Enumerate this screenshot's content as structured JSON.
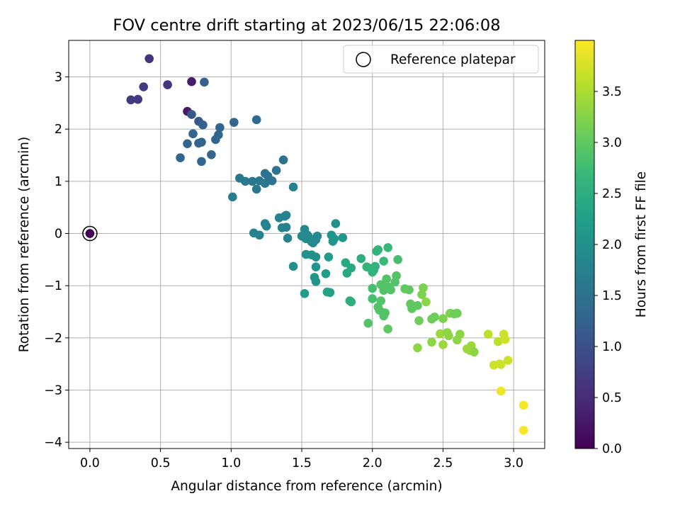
{
  "chart_data": {
    "type": "scatter",
    "title": "FOV centre drift starting at 2023/06/15 22:06:08",
    "xlabel": "Angular distance from reference (arcmin)",
    "ylabel": "Rotation from reference (arcmin)",
    "xlim": [
      -0.15,
      3.22
    ],
    "ylim": [
      -4.12,
      3.7
    ],
    "xticks": [
      "0.0",
      "0.5",
      "1.0",
      "1.5",
      "2.0",
      "2.5",
      "3.0"
    ],
    "xtick_values": [
      0,
      0.5,
      1,
      1.5,
      2,
      2.5,
      3
    ],
    "yticks": [
      "3",
      "2",
      "1",
      "0",
      "−1",
      "−2",
      "−3",
      "−4"
    ],
    "ytick_values": [
      3,
      2,
      1,
      0,
      -1,
      -2,
      -3,
      -4
    ],
    "grid": true,
    "legend": {
      "position": "top-right",
      "label": "Reference platepar"
    },
    "colorbar": {
      "label": "Hours from first FF file",
      "colormap": "viridis",
      "range": [
        0,
        4.0
      ],
      "ticks": [
        "0.0",
        "0.5",
        "1.0",
        "1.5",
        "2.0",
        "2.5",
        "3.0",
        "3.5"
      ],
      "tick_values": [
        0,
        0.5,
        1,
        1.5,
        2,
        2.5,
        3,
        3.5
      ],
      "colors": [
        "#440154",
        "#482878",
        "#3e4989",
        "#31688e",
        "#26828e",
        "#1f9e89",
        "#35b779",
        "#6ece58",
        "#b5de2b",
        "#fde725"
      ]
    },
    "reference": {
      "x": 0.0,
      "y": 0.0,
      "t": 0.0
    },
    "points": [
      [
        0.42,
        3.35,
        0.6
      ],
      [
        0.29,
        2.56,
        0.7
      ],
      [
        0.34,
        2.57,
        0.7
      ],
      [
        0.38,
        2.81,
        0.7
      ],
      [
        0.55,
        2.85,
        0.6
      ],
      [
        0.72,
        2.91,
        0.3
      ],
      [
        0.81,
        2.9,
        1.2
      ],
      [
        0.69,
        2.34,
        0.3
      ],
      [
        0.72,
        2.28,
        1.1
      ],
      [
        0.77,
        2.15,
        1.1
      ],
      [
        0.8,
        2.08,
        1.2
      ],
      [
        0.73,
        1.91,
        1.3
      ],
      [
        0.69,
        1.72,
        1.3
      ],
      [
        0.77,
        1.73,
        1.3
      ],
      [
        0.79,
        1.75,
        1.3
      ],
      [
        0.92,
        2.03,
        1.3
      ],
      [
        0.91,
        1.89,
        1.3
      ],
      [
        0.89,
        1.8,
        1.3
      ],
      [
        1.02,
        2.13,
        1.3
      ],
      [
        1.18,
        2.18,
        1.4
      ],
      [
        0.64,
        1.45,
        1.3
      ],
      [
        0.79,
        1.38,
        1.3
      ],
      [
        0.86,
        1.51,
        1.3
      ],
      [
        1.01,
        0.7,
        1.7
      ],
      [
        1.06,
        1.06,
        1.6
      ],
      [
        1.1,
        1.0,
        1.6
      ],
      [
        1.15,
        1.0,
        1.6
      ],
      [
        1.18,
        0.85,
        1.6
      ],
      [
        1.2,
        1.01,
        1.6
      ],
      [
        1.24,
        1.15,
        1.5
      ],
      [
        1.26,
        1.1,
        1.5
      ],
      [
        1.29,
        1.01,
        1.5
      ],
      [
        1.32,
        1.21,
        1.5
      ],
      [
        1.37,
        1.41,
        1.5
      ],
      [
        1.24,
        0.96,
        1.6
      ],
      [
        1.44,
        0.89,
        1.8
      ],
      [
        1.16,
        0.01,
        1.8
      ],
      [
        1.2,
        -0.03,
        1.8
      ],
      [
        1.24,
        0.19,
        1.8
      ],
      [
        1.25,
        0.14,
        1.8
      ],
      [
        1.34,
        0.3,
        1.8
      ],
      [
        1.36,
        0.11,
        1.8
      ],
      [
        1.38,
        0.33,
        1.8
      ],
      [
        1.39,
        0.35,
        1.8
      ],
      [
        1.4,
        -0.09,
        1.8
      ],
      [
        1.39,
        0.12,
        1.8
      ],
      [
        1.44,
        -0.63,
        2.0
      ],
      [
        1.5,
        -0.05,
        1.9
      ],
      [
        1.52,
        0.08,
        1.9
      ],
      [
        1.53,
        -0.1,
        1.9
      ],
      [
        1.54,
        -0.03,
        1.9
      ],
      [
        1.55,
        -0.07,
        1.9
      ],
      [
        1.57,
        -0.16,
        1.9
      ],
      [
        1.58,
        -0.18,
        1.9
      ],
      [
        1.6,
        -0.12,
        1.9
      ],
      [
        1.61,
        -0.05,
        1.9
      ],
      [
        1.53,
        -0.4,
        2.0
      ],
      [
        1.57,
        -0.41,
        2.0
      ],
      [
        1.6,
        -0.45,
        2.0
      ],
      [
        1.6,
        -0.64,
        2.1
      ],
      [
        1.59,
        -0.84,
        2.1
      ],
      [
        1.6,
        -0.92,
        2.1
      ],
      [
        1.52,
        -1.15,
        2.2
      ],
      [
        1.67,
        -0.77,
        2.2
      ],
      [
        1.69,
        -0.45,
        2.2
      ],
      [
        1.71,
        -0.03,
        2.1
      ],
      [
        1.72,
        -0.15,
        2.1
      ],
      [
        1.73,
        -0.1,
        2.1
      ],
      [
        1.74,
        0.19,
        2.0
      ],
      [
        1.79,
        -0.08,
        2.1
      ],
      [
        1.68,
        -1.12,
        2.3
      ],
      [
        1.7,
        -1.13,
        2.3
      ],
      [
        1.81,
        -0.56,
        2.4
      ],
      [
        1.82,
        -0.76,
        2.4
      ],
      [
        1.85,
        -0.66,
        2.4
      ],
      [
        1.84,
        -1.29,
        2.5
      ],
      [
        1.85,
        -1.31,
        2.5
      ],
      [
        1.92,
        -0.48,
        2.5
      ],
      [
        1.96,
        -0.64,
        2.6
      ],
      [
        1.99,
        -0.67,
        2.6
      ],
      [
        2.0,
        -0.74,
        2.6
      ],
      [
        2.01,
        -0.7,
        2.6
      ],
      [
        2.02,
        -0.63,
        2.6
      ],
      [
        2.03,
        -0.34,
        2.6
      ],
      [
        2.04,
        -0.31,
        2.6
      ],
      [
        2.08,
        -0.53,
        2.7
      ],
      [
        2.11,
        -0.27,
        2.7
      ],
      [
        2.0,
        -1.05,
        2.8
      ],
      [
        2.0,
        -1.25,
        2.8
      ],
      [
        2.04,
        -1.41,
        2.9
      ],
      [
        2.05,
        -1.47,
        2.9
      ],
      [
        2.06,
        -1.29,
        2.9
      ],
      [
        2.06,
        -0.98,
        2.9
      ],
      [
        2.08,
        -1.09,
        2.9
      ],
      [
        2.08,
        -1.58,
        2.9
      ],
      [
        2.09,
        -1.52,
        2.9
      ],
      [
        2.1,
        -0.87,
        2.9
      ],
      [
        2.11,
        -1.02,
        2.9
      ],
      [
        2.13,
        -1.08,
        2.9
      ],
      [
        2.17,
        -0.81,
        2.9
      ],
      [
        2.16,
        -0.93,
        2.9
      ],
      [
        2.18,
        -0.5,
        2.8
      ],
      [
        1.97,
        -1.72,
        2.9
      ],
      [
        2.11,
        -1.83,
        3.0
      ],
      [
        2.23,
        -1.06,
        3.0
      ],
      [
        2.26,
        -1.08,
        3.0
      ],
      [
        2.27,
        -1.35,
        3.0
      ],
      [
        2.28,
        -1.44,
        3.0
      ],
      [
        2.32,
        -1.38,
        3.0
      ],
      [
        2.33,
        -1.67,
        3.1
      ],
      [
        2.35,
        -1.17,
        3.2
      ],
      [
        2.36,
        -1.04,
        3.2
      ],
      [
        2.38,
        -1.31,
        3.3
      ],
      [
        2.32,
        -2.19,
        3.3
      ],
      [
        2.42,
        -1.64,
        3.1
      ],
      [
        2.44,
        -1.6,
        3.1
      ],
      [
        2.42,
        -2.08,
        3.3
      ],
      [
        2.48,
        -1.92,
        3.4
      ],
      [
        2.5,
        -2.13,
        3.4
      ],
      [
        2.5,
        -1.63,
        3.2
      ],
      [
        2.53,
        -1.9,
        3.3
      ],
      [
        2.54,
        -1.96,
        3.3
      ],
      [
        2.55,
        -1.53,
        3.2
      ],
      [
        2.58,
        -1.54,
        3.1
      ],
      [
        2.6,
        -1.53,
        3.1
      ],
      [
        2.6,
        -2.04,
        3.3
      ],
      [
        2.62,
        -1.93,
        3.3
      ],
      [
        2.67,
        -2.21,
        3.4
      ],
      [
        2.69,
        -2.24,
        3.4
      ],
      [
        2.7,
        -2.15,
        3.4
      ],
      [
        2.72,
        -2.27,
        3.3
      ],
      [
        2.82,
        -1.93,
        3.6
      ],
      [
        2.86,
        -2.52,
        3.7
      ],
      [
        2.89,
        -2.07,
        3.6
      ],
      [
        2.9,
        -2.5,
        3.7
      ],
      [
        2.91,
        -2.51,
        3.7
      ],
      [
        2.93,
        -1.93,
        3.7
      ],
      [
        2.94,
        -2.03,
        3.7
      ],
      [
        2.96,
        -2.43,
        3.7
      ],
      [
        2.91,
        -3.02,
        3.9
      ],
      [
        3.07,
        -3.29,
        3.95
      ],
      [
        3.07,
        -3.77,
        3.95
      ]
    ]
  }
}
